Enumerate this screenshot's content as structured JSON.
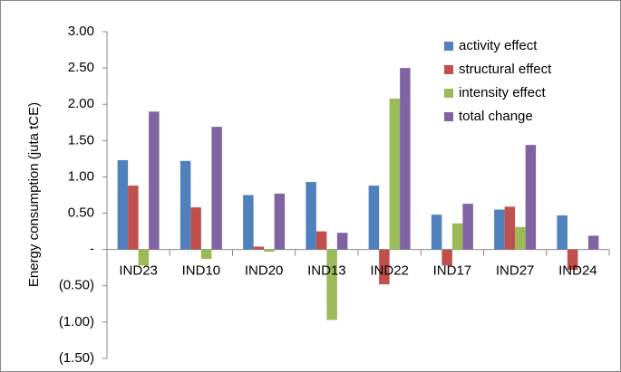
{
  "chart_data": {
    "type": "bar",
    "y_label": "Energy consumption (juta tCE)",
    "categories": [
      "IND23",
      "IND10",
      "IND20",
      "IND13",
      "IND22",
      "IND17",
      "IND27",
      "IND24"
    ],
    "series": [
      {
        "name": "activity effect",
        "color": "#4f81bd",
        "values": [
          1.23,
          1.22,
          0.75,
          0.93,
          0.88,
          0.48,
          0.55,
          0.47
        ]
      },
      {
        "name": "structural effect",
        "color": "#c0504d",
        "values": [
          0.88,
          0.58,
          0.04,
          0.25,
          -0.48,
          -0.22,
          0.59,
          -0.28
        ]
      },
      {
        "name": "intensity effect",
        "color": "#9bbb59",
        "values": [
          -0.22,
          -0.13,
          -0.03,
          -0.97,
          2.08,
          0.36,
          0.31,
          0
        ]
      },
      {
        "name": "total change",
        "color": "#8064a2",
        "values": [
          1.9,
          1.69,
          0.77,
          0.23,
          2.5,
          0.63,
          1.44,
          0.19
        ]
      }
    ],
    "ylim": [
      -1.5,
      3.0
    ],
    "yticks": [
      {
        "value": 3,
        "label": "3.00"
      },
      {
        "value": 2.5,
        "label": "2.50"
      },
      {
        "value": 2,
        "label": "2.00"
      },
      {
        "value": 1.5,
        "label": "1.50"
      },
      {
        "value": 1,
        "label": "1.00"
      },
      {
        "value": 0.5,
        "label": "0.50"
      },
      {
        "value": 0,
        "label": "-"
      },
      {
        "value": -0.5,
        "label": "(0.50)"
      },
      {
        "value": -1,
        "label": "(1.00)"
      },
      {
        "value": -1.5,
        "label": "(1.50)"
      }
    ],
    "legend": "top-right"
  }
}
